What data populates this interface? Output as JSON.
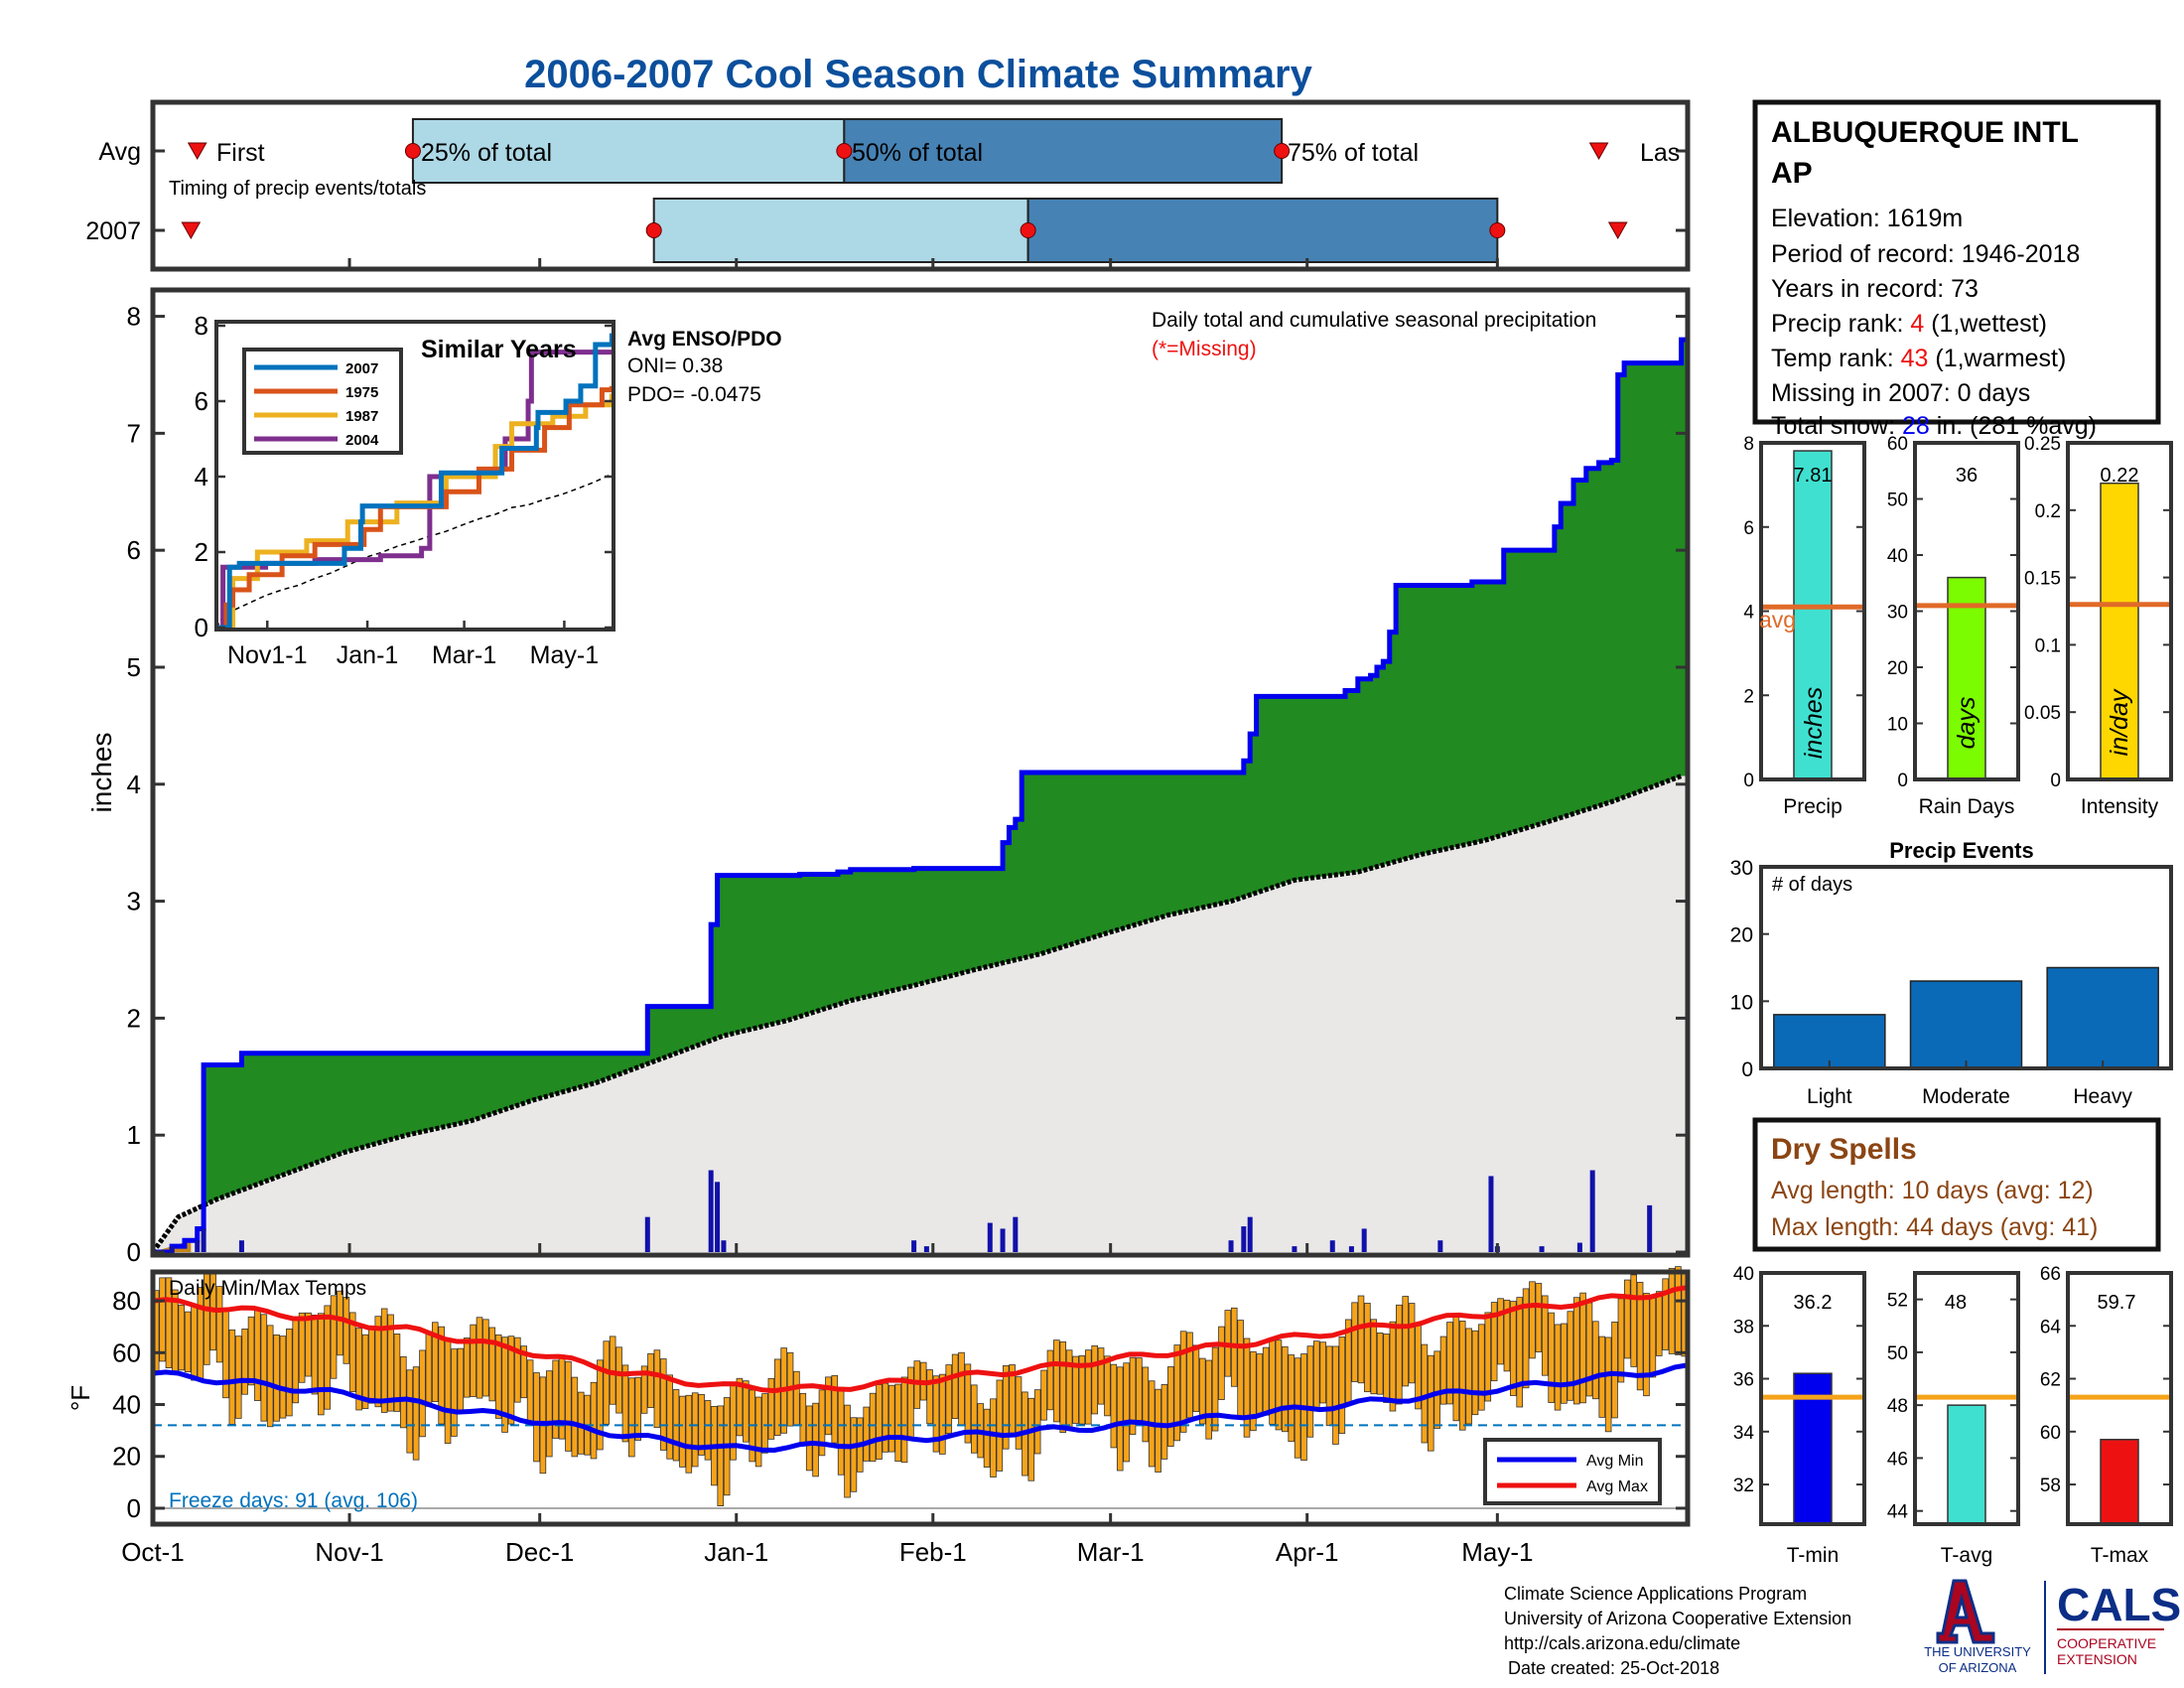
{
  "title": "2006-2007 Cool Season Climate Summary",
  "timing": {
    "row_labels": [
      "Avg",
      "2007"
    ],
    "caption": "Timing of precip events/totals",
    "first_label": "First",
    "last_label": "Las",
    "q25_label": "25% of total",
    "q50_label": "50% of total",
    "q75_label": "75% of total"
  },
  "station": {
    "name_line1": "ALBUQUERQUE INTL",
    "name_line2": "AP",
    "elevation": "Elevation: 1619m",
    "period": "Period of record: 1946-2018",
    "years": "Years in record: 73",
    "precip_rank_prefix": "Precip rank: ",
    "precip_rank_value": "4",
    "precip_rank_suffix": " (1,wettest)",
    "temp_rank_prefix": "Temp rank: ",
    "temp_rank_value": "43",
    "temp_rank_suffix": " (1,warmest)",
    "missing": "Missing in 2007: 0 days",
    "snow_prefix": "Total snow: ",
    "snow_value": "28",
    "snow_suffix": " in. (281 %avg)"
  },
  "main": {
    "note": "Daily total and cumulative seasonal precipitation",
    "missing_note": "(*=Missing)",
    "ylabel": "inches"
  },
  "inset": {
    "title": "Similar Years",
    "enso_title": "Avg ENSO/PDO",
    "oni": "ONI= 0.38",
    "pdo": "PDO= -0.0475"
  },
  "temps": {
    "title": "Daily Min/Max Temps",
    "ylabel": "°F",
    "freeze": "Freeze days: 91 (avg. 106)",
    "legend_min": "Avg Min",
    "legend_max": "Avg Max"
  },
  "stats": {
    "precip_label": "Precip",
    "precip_value": "7.81",
    "precip_unit": "inches",
    "avg_label": "avg",
    "raindays_label": "Rain Days",
    "raindays_value": "36",
    "raindays_unit": "days",
    "intensity_label": "Intensity",
    "intensity_value": "0.22",
    "intensity_unit": "in/day"
  },
  "events": {
    "title": "Precip Events",
    "ylabel": "# of days"
  },
  "dry": {
    "title": "Dry Spells",
    "avg": "Avg length: 10 days (avg: 12)",
    "max": "Max length: 44 days (avg: 41)"
  },
  "tstats": {
    "tmin_label": "T-min",
    "tmin_value": "36.2",
    "tavg_label": "T-avg",
    "tavg_value": "48",
    "tmax_label": "T-max",
    "tmax_value": "59.7"
  },
  "footer": {
    "line1": "Climate Science Applications Program",
    "line2": "University of Arizona Cooperative Extension",
    "line3": "http://cals.arizona.edu/climate",
    "line4": "Date created: 25-Oct-2018",
    "logo_ua_line1": "THE UNIVERSITY",
    "logo_ua_line2": "OF ARIZONA",
    "logo_cals": "CALS",
    "logo_cals_line1": "COOPERATIVE",
    "logo_cals_line2": "EXTENSION"
  },
  "colors": {
    "title": "#0b4f9c",
    "green": "#218a21",
    "blue_line": "#0000ee",
    "gray_fill": "#e9e8e7",
    "light_blue": "#add8e6",
    "steel_blue": "#4682b4",
    "orange": "#f5a31a",
    "red": "#ee1111",
    "avg_line": "#e06a28",
    "navy": "#0c2e86",
    "ua_red": "#ab0520",
    "brown": "#8b4513"
  },
  "chart_data": [
    {
      "type": "area",
      "name": "cumulative-precip",
      "x_ticks": [
        "Oct-1",
        "Nov-1",
        "Dec-1",
        "Jan-1",
        "Feb-1",
        "Mar-1",
        "Apr-1",
        "May-1"
      ],
      "ylabel": "inches",
      "ylim": [
        0,
        8.2
      ],
      "y_ticks": [
        0,
        1,
        2,
        3,
        4,
        5,
        6,
        7,
        8
      ],
      "day_range": [
        0,
        242
      ],
      "observed_steps": [
        [
          0,
          0
        ],
        [
          3,
          0.05
        ],
        [
          5,
          0.1
        ],
        [
          7,
          0.2
        ],
        [
          8,
          1.6
        ],
        [
          14,
          1.7
        ],
        [
          78,
          1.7
        ],
        [
          78,
          2.1
        ],
        [
          87,
          2.1
        ],
        [
          88,
          2.8
        ],
        [
          89,
          3.22
        ],
        [
          102,
          3.23
        ],
        [
          108,
          3.25
        ],
        [
          110,
          3.27
        ],
        [
          120,
          3.28
        ],
        [
          134,
          3.5
        ],
        [
          135,
          3.63
        ],
        [
          136,
          3.7
        ],
        [
          137,
          3.7
        ],
        [
          137,
          4.1
        ],
        [
          171,
          4.1
        ],
        [
          172,
          4.2
        ],
        [
          173,
          4.43
        ],
        [
          174,
          4.75
        ],
        [
          188,
          4.8
        ],
        [
          190,
          4.9
        ],
        [
          192,
          4.93
        ],
        [
          193,
          5.0
        ],
        [
          194,
          5.05
        ],
        [
          195,
          5.3
        ],
        [
          196,
          5.7
        ],
        [
          208,
          5.73
        ],
        [
          213,
          6.0
        ],
        [
          221,
          6.2
        ],
        [
          222,
          6.4
        ],
        [
          224,
          6.6
        ],
        [
          226,
          6.7
        ],
        [
          228,
          6.75
        ],
        [
          230,
          6.77
        ],
        [
          231,
          7.5
        ],
        [
          232,
          7.6
        ],
        [
          241,
          7.8
        ]
      ],
      "average_points": [
        [
          0,
          0
        ],
        [
          4,
          0.3
        ],
        [
          10,
          0.45
        ],
        [
          20,
          0.65
        ],
        [
          30,
          0.85
        ],
        [
          40,
          1.0
        ],
        [
          50,
          1.12
        ],
        [
          60,
          1.3
        ],
        [
          70,
          1.45
        ],
        [
          80,
          1.65
        ],
        [
          90,
          1.85
        ],
        [
          100,
          1.98
        ],
        [
          110,
          2.15
        ],
        [
          120,
          2.28
        ],
        [
          130,
          2.42
        ],
        [
          140,
          2.55
        ],
        [
          150,
          2.72
        ],
        [
          160,
          2.88
        ],
        [
          170,
          3.0
        ],
        [
          180,
          3.18
        ],
        [
          190,
          3.25
        ],
        [
          200,
          3.4
        ],
        [
          210,
          3.52
        ],
        [
          220,
          3.68
        ],
        [
          230,
          3.85
        ],
        [
          241,
          4.07
        ]
      ],
      "daily_precip": [
        [
          3,
          0.05
        ],
        [
          7,
          0.1
        ],
        [
          8,
          0.2
        ],
        [
          14,
          0.1
        ],
        [
          78,
          0.3
        ],
        [
          88,
          0.7
        ],
        [
          89,
          0.6
        ],
        [
          90,
          0.1
        ],
        [
          120,
          0.1
        ],
        [
          122,
          0.05
        ],
        [
          132,
          0.25
        ],
        [
          134,
          0.2
        ],
        [
          136,
          0.3
        ],
        [
          170,
          0.1
        ],
        [
          172,
          0.22
        ],
        [
          173,
          0.3
        ],
        [
          180,
          0.05
        ],
        [
          186,
          0.1
        ],
        [
          189,
          0.05
        ],
        [
          191,
          0.2
        ],
        [
          203,
          0.1
        ],
        [
          211,
          0.65
        ],
        [
          212,
          0.05
        ],
        [
          219,
          0.05
        ],
        [
          225,
          0.08
        ],
        [
          227,
          0.7
        ],
        [
          236,
          0.4
        ]
      ]
    },
    {
      "type": "bar",
      "name": "timing-of-precip",
      "categories": [
        "Avg",
        "2007"
      ],
      "series": [
        {
          "name": "First",
          "values": [
            "Oct-8",
            "Oct-7"
          ]
        },
        {
          "name": "25% of total",
          "values": [
            "Nov-11",
            "Dec-19"
          ]
        },
        {
          "name": "50% of total",
          "values": [
            "Jan-18",
            "Feb-16"
          ]
        },
        {
          "name": "75% of total",
          "values": [
            "Mar-28",
            "May-1"
          ]
        },
        {
          "name": "Las",
          "values": [
            "May-17",
            "May-20"
          ]
        }
      ]
    },
    {
      "type": "line",
      "name": "similar-years",
      "title": "Similar Years",
      "x_ticks": [
        "Nov1-1",
        "Jan-1",
        "Mar-1",
        "May-1"
      ],
      "ylim": [
        0,
        8
      ],
      "y_ticks": [
        0,
        2,
        4,
        6,
        8
      ],
      "series": [
        {
          "name": "2007",
          "color": "#0072bd",
          "values": [
            [
              0,
              0
            ],
            [
              8,
              1.6
            ],
            [
              14,
              1.7
            ],
            [
              78,
              1.7
            ],
            [
              78,
              2.1
            ],
            [
              88,
              2.8
            ],
            [
              89,
              3.22
            ],
            [
              137,
              3.7
            ],
            [
              137,
              4.1
            ],
            [
              171,
              4.1
            ],
            [
              174,
              4.75
            ],
            [
              195,
              5.3
            ],
            [
              196,
              5.7
            ],
            [
              213,
              6.0
            ],
            [
              222,
              6.4
            ],
            [
              231,
              7.5
            ],
            [
              241,
              7.8
            ]
          ]
        },
        {
          "name": "1975",
          "color": "#d95319",
          "values": [
            [
              0,
              0
            ],
            [
              6,
              0.6
            ],
            [
              10,
              1.0
            ],
            [
              20,
              1.4
            ],
            [
              40,
              1.9
            ],
            [
              60,
              2.2
            ],
            [
              90,
              2.6
            ],
            [
              100,
              3.2
            ],
            [
              140,
              3.6
            ],
            [
              160,
              4.2
            ],
            [
              180,
              4.7
            ],
            [
              200,
              5.3
            ],
            [
              215,
              5.9
            ],
            [
              235,
              6.3
            ],
            [
              241,
              6.4
            ]
          ]
        },
        {
          "name": "1987",
          "color": "#edb120",
          "values": [
            [
              0,
              0
            ],
            [
              10,
              1.3
            ],
            [
              25,
              2.0
            ],
            [
              55,
              2.3
            ],
            [
              80,
              2.8
            ],
            [
              110,
              3.3
            ],
            [
              140,
              4.0
            ],
            [
              170,
              4.8
            ],
            [
              180,
              5.4
            ],
            [
              205,
              5.6
            ],
            [
              225,
              5.9
            ],
            [
              241,
              6.2
            ]
          ]
        },
        {
          "name": "2004",
          "color": "#7e2f8e",
          "values": [
            [
              0,
              0
            ],
            [
              4,
              1.6
            ],
            [
              30,
              1.7
            ],
            [
              60,
              1.8
            ],
            [
              100,
              1.9
            ],
            [
              125,
              2.1
            ],
            [
              130,
              4.0
            ],
            [
              170,
              4.2
            ],
            [
              176,
              5.0
            ],
            [
              190,
              6.0
            ],
            [
              192,
              7.3
            ],
            [
              241,
              7.3
            ]
          ]
        }
      ]
    },
    {
      "type": "line",
      "name": "daily-temps",
      "title": "Daily Min/Max Temps",
      "ylabel": "°F",
      "ylim": [
        -5,
        90
      ],
      "y_ticks": [
        0,
        20,
        40,
        60,
        80
      ],
      "freeze_line": 32,
      "series": [
        {
          "name": "Avg Min",
          "values": [
            [
              0,
              52
            ],
            [
              20,
              47
            ],
            [
              40,
              41
            ],
            [
              60,
              34
            ],
            [
              75,
              28
            ],
            [
              90,
              23
            ],
            [
              105,
              24
            ],
            [
              120,
              27
            ],
            [
              140,
              30
            ],
            [
              160,
              33
            ],
            [
              180,
              38
            ],
            [
              200,
              43
            ],
            [
              220,
              48
            ],
            [
              241,
              54
            ]
          ]
        },
        {
          "name": "Avg Max",
          "values": [
            [
              0,
              80
            ],
            [
              20,
              75
            ],
            [
              40,
              69
            ],
            [
              60,
              60
            ],
            [
              75,
              52
            ],
            [
              90,
              47
            ],
            [
              105,
              46
            ],
            [
              120,
              49
            ],
            [
              140,
              54
            ],
            [
              160,
              60
            ],
            [
              180,
              66
            ],
            [
              200,
              72
            ],
            [
              220,
              78
            ],
            [
              241,
              84
            ]
          ]
        }
      ]
    },
    {
      "type": "bar",
      "name": "precip-stats",
      "categories": [
        "Precip",
        "Rain Days",
        "Intensity"
      ],
      "values": [
        7.81,
        36,
        0.22
      ],
      "averages": [
        4.1,
        31,
        0.13
      ],
      "ylims": [
        [
          0,
          8
        ],
        [
          0,
          60
        ],
        [
          0,
          0.25
        ]
      ]
    },
    {
      "type": "bar",
      "name": "precip-events",
      "title": "Precip Events",
      "ylabel": "# of days",
      "categories": [
        "Light",
        "Moderate",
        "Heavy"
      ],
      "values": [
        8,
        13,
        15
      ],
      "ylim": [
        0,
        30
      ],
      "y_ticks": [
        0,
        10,
        20,
        30
      ]
    },
    {
      "type": "bar",
      "name": "temp-stats",
      "categories": [
        "T-min",
        "T-avg",
        "T-max"
      ],
      "values": [
        36.2,
        48,
        59.7
      ],
      "averages": [
        35.3,
        48.3,
        61.3
      ],
      "ylims": [
        [
          30.5,
          40
        ],
        [
          43.5,
          53
        ],
        [
          56.5,
          66
        ]
      ]
    }
  ]
}
